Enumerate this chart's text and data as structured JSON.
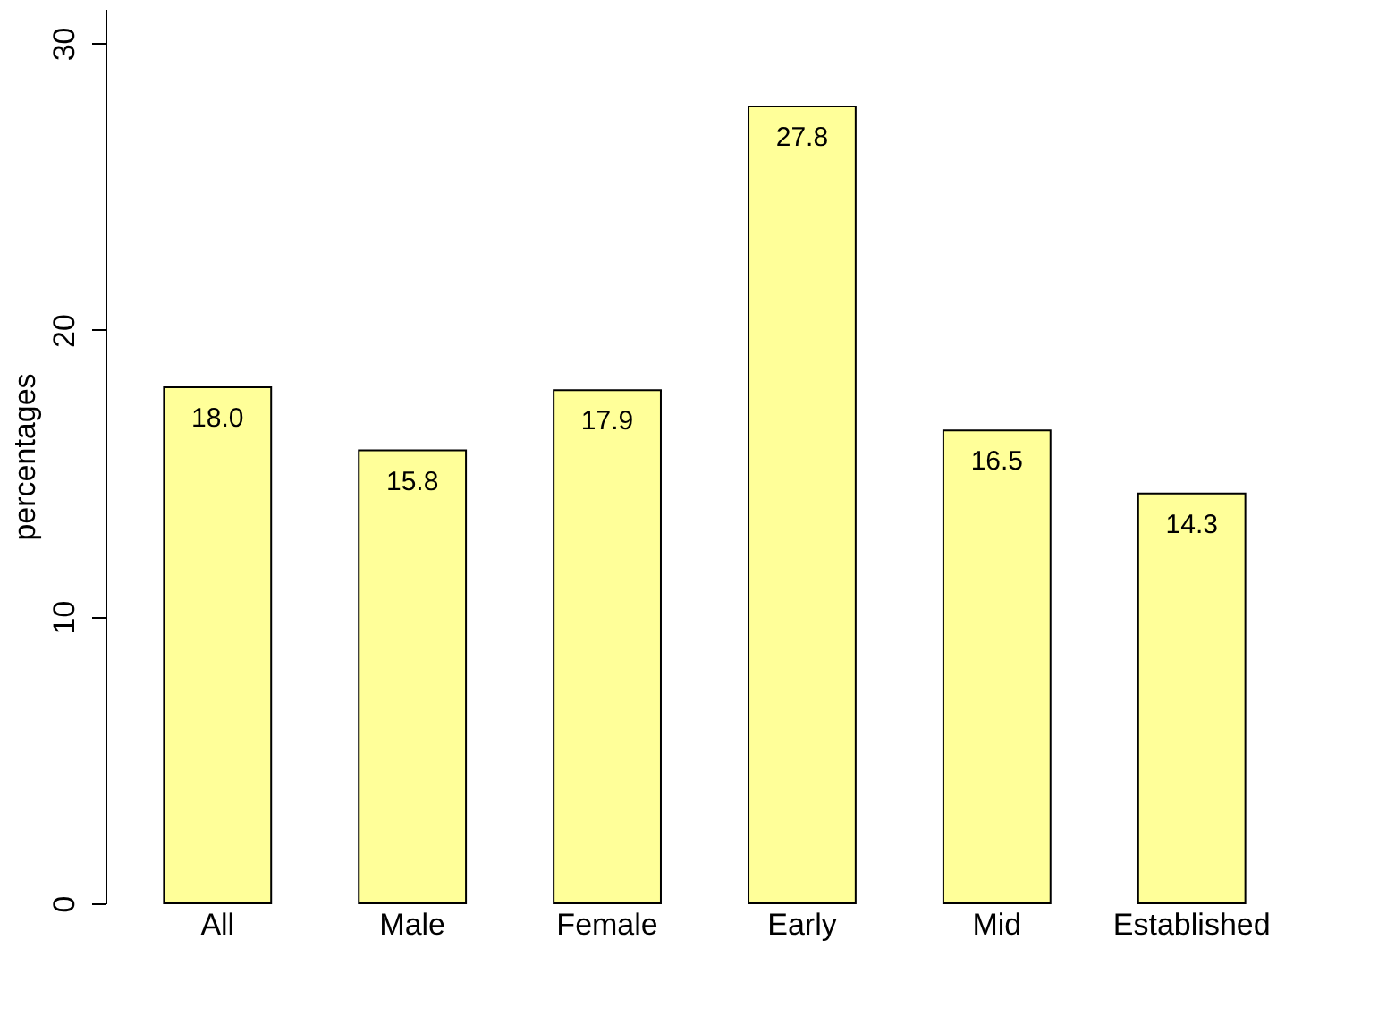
{
  "chart_data": {
    "type": "bar",
    "ylabel": "percentages",
    "categories": [
      "All",
      "Male",
      "Female",
      "Early",
      "Mid",
      "Established"
    ],
    "values": [
      18.0,
      15.8,
      17.9,
      27.8,
      16.5,
      14.3
    ],
    "color": "#ffff99",
    "ylim": [
      0,
      31.2
    ],
    "yticks": [
      0,
      10,
      20,
      30
    ],
    "value_labels": [
      "18.0",
      "15.8",
      "17.9",
      "27.8",
      "16.5",
      "14.3"
    ],
    "grid": false
  }
}
